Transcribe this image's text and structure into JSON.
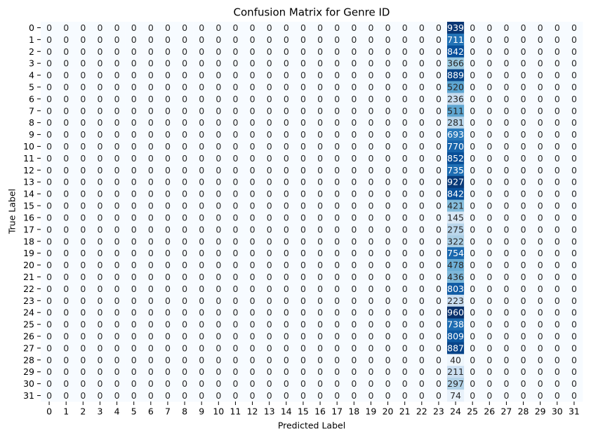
{
  "chart_data": {
    "type": "heatmap",
    "title": "Confusion Matrix for Genre ID",
    "xlabel": "Predicted Label",
    "ylabel": "True Label",
    "x": [
      0,
      1,
      2,
      3,
      4,
      5,
      6,
      7,
      8,
      9,
      10,
      11,
      12,
      13,
      14,
      15,
      16,
      17,
      18,
      19,
      20,
      21,
      22,
      23,
      24,
      25,
      26,
      27,
      28,
      29,
      30,
      31
    ],
    "y": [
      0,
      1,
      2,
      3,
      4,
      5,
      6,
      7,
      8,
      9,
      10,
      11,
      12,
      13,
      14,
      15,
      16,
      17,
      18,
      19,
      20,
      21,
      22,
      23,
      24,
      25,
      26,
      27,
      28,
      29,
      30,
      31
    ],
    "colormap": [
      "#f7fbff",
      "#deebf7",
      "#c6dbef",
      "#9ecae1",
      "#6baed6",
      "#4292c6",
      "#2171b5",
      "#08519c",
      "#08306b"
    ],
    "values": [
      [
        0,
        0,
        0,
        0,
        0,
        0,
        0,
        0,
        0,
        0,
        0,
        0,
        0,
        0,
        0,
        0,
        0,
        0,
        0,
        0,
        0,
        0,
        0,
        0,
        939,
        0,
        0,
        0,
        0,
        0,
        0,
        0
      ],
      [
        0,
        0,
        0,
        0,
        0,
        0,
        0,
        0,
        0,
        0,
        0,
        0,
        0,
        0,
        0,
        0,
        0,
        0,
        0,
        0,
        0,
        0,
        0,
        0,
        711,
        0,
        0,
        0,
        0,
        0,
        0,
        0
      ],
      [
        0,
        0,
        0,
        0,
        0,
        0,
        0,
        0,
        0,
        0,
        0,
        0,
        0,
        0,
        0,
        0,
        0,
        0,
        0,
        0,
        0,
        0,
        0,
        0,
        842,
        0,
        0,
        0,
        0,
        0,
        0,
        0
      ],
      [
        0,
        0,
        0,
        0,
        0,
        0,
        0,
        0,
        0,
        0,
        0,
        0,
        0,
        0,
        0,
        0,
        0,
        0,
        0,
        0,
        0,
        0,
        0,
        0,
        366,
        0,
        0,
        0,
        0,
        0,
        0,
        0
      ],
      [
        0,
        0,
        0,
        0,
        0,
        0,
        0,
        0,
        0,
        0,
        0,
        0,
        0,
        0,
        0,
        0,
        0,
        0,
        0,
        0,
        0,
        0,
        0,
        0,
        889,
        0,
        0,
        0,
        0,
        0,
        0,
        0
      ],
      [
        0,
        0,
        0,
        0,
        0,
        0,
        0,
        0,
        0,
        0,
        0,
        0,
        0,
        0,
        0,
        0,
        0,
        0,
        0,
        0,
        0,
        0,
        0,
        0,
        520,
        0,
        0,
        0,
        0,
        0,
        0,
        0
      ],
      [
        0,
        0,
        0,
        0,
        0,
        0,
        0,
        0,
        0,
        0,
        0,
        0,
        0,
        0,
        0,
        0,
        0,
        0,
        0,
        0,
        0,
        0,
        0,
        0,
        236,
        0,
        0,
        0,
        0,
        0,
        0,
        0
      ],
      [
        0,
        0,
        0,
        0,
        0,
        0,
        0,
        0,
        0,
        0,
        0,
        0,
        0,
        0,
        0,
        0,
        0,
        0,
        0,
        0,
        0,
        0,
        0,
        0,
        511,
        0,
        0,
        0,
        0,
        0,
        0,
        0
      ],
      [
        0,
        0,
        0,
        0,
        0,
        0,
        0,
        0,
        0,
        0,
        0,
        0,
        0,
        0,
        0,
        0,
        0,
        0,
        0,
        0,
        0,
        0,
        0,
        0,
        281,
        0,
        0,
        0,
        0,
        0,
        0,
        0
      ],
      [
        0,
        0,
        0,
        0,
        0,
        0,
        0,
        0,
        0,
        0,
        0,
        0,
        0,
        0,
        0,
        0,
        0,
        0,
        0,
        0,
        0,
        0,
        0,
        0,
        693,
        0,
        0,
        0,
        0,
        0,
        0,
        0
      ],
      [
        0,
        0,
        0,
        0,
        0,
        0,
        0,
        0,
        0,
        0,
        0,
        0,
        0,
        0,
        0,
        0,
        0,
        0,
        0,
        0,
        0,
        0,
        0,
        0,
        770,
        0,
        0,
        0,
        0,
        0,
        0,
        0
      ],
      [
        0,
        0,
        0,
        0,
        0,
        0,
        0,
        0,
        0,
        0,
        0,
        0,
        0,
        0,
        0,
        0,
        0,
        0,
        0,
        0,
        0,
        0,
        0,
        0,
        852,
        0,
        0,
        0,
        0,
        0,
        0,
        0
      ],
      [
        0,
        0,
        0,
        0,
        0,
        0,
        0,
        0,
        0,
        0,
        0,
        0,
        0,
        0,
        0,
        0,
        0,
        0,
        0,
        0,
        0,
        0,
        0,
        0,
        735,
        0,
        0,
        0,
        0,
        0,
        0,
        0
      ],
      [
        0,
        0,
        0,
        0,
        0,
        0,
        0,
        0,
        0,
        0,
        0,
        0,
        0,
        0,
        0,
        0,
        0,
        0,
        0,
        0,
        0,
        0,
        0,
        0,
        927,
        0,
        0,
        0,
        0,
        0,
        0,
        0
      ],
      [
        0,
        0,
        0,
        0,
        0,
        0,
        0,
        0,
        0,
        0,
        0,
        0,
        0,
        0,
        0,
        0,
        0,
        0,
        0,
        0,
        0,
        0,
        0,
        0,
        842,
        0,
        0,
        0,
        0,
        0,
        0,
        0
      ],
      [
        0,
        0,
        0,
        0,
        0,
        0,
        0,
        0,
        0,
        0,
        0,
        0,
        0,
        0,
        0,
        0,
        0,
        0,
        0,
        0,
        0,
        0,
        0,
        0,
        421,
        0,
        0,
        0,
        0,
        0,
        0,
        0
      ],
      [
        0,
        0,
        0,
        0,
        0,
        0,
        0,
        0,
        0,
        0,
        0,
        0,
        0,
        0,
        0,
        0,
        0,
        0,
        0,
        0,
        0,
        0,
        0,
        0,
        145,
        0,
        0,
        0,
        0,
        0,
        0,
        0
      ],
      [
        0,
        0,
        0,
        0,
        0,
        0,
        0,
        0,
        0,
        0,
        0,
        0,
        0,
        0,
        0,
        0,
        0,
        0,
        0,
        0,
        0,
        0,
        0,
        0,
        275,
        0,
        0,
        0,
        0,
        0,
        0,
        0
      ],
      [
        0,
        0,
        0,
        0,
        0,
        0,
        0,
        0,
        0,
        0,
        0,
        0,
        0,
        0,
        0,
        0,
        0,
        0,
        0,
        0,
        0,
        0,
        0,
        0,
        322,
        0,
        0,
        0,
        0,
        0,
        0,
        0
      ],
      [
        0,
        0,
        0,
        0,
        0,
        0,
        0,
        0,
        0,
        0,
        0,
        0,
        0,
        0,
        0,
        0,
        0,
        0,
        0,
        0,
        0,
        0,
        0,
        0,
        754,
        0,
        0,
        0,
        0,
        0,
        0,
        0
      ],
      [
        0,
        0,
        0,
        0,
        0,
        0,
        0,
        0,
        0,
        0,
        0,
        0,
        0,
        0,
        0,
        0,
        0,
        0,
        0,
        0,
        0,
        0,
        0,
        0,
        478,
        0,
        0,
        0,
        0,
        0,
        0,
        0
      ],
      [
        0,
        0,
        0,
        0,
        0,
        0,
        0,
        0,
        0,
        0,
        0,
        0,
        0,
        0,
        0,
        0,
        0,
        0,
        0,
        0,
        0,
        0,
        0,
        0,
        436,
        0,
        0,
        0,
        0,
        0,
        0,
        0
      ],
      [
        0,
        0,
        0,
        0,
        0,
        0,
        0,
        0,
        0,
        0,
        0,
        0,
        0,
        0,
        0,
        0,
        0,
        0,
        0,
        0,
        0,
        0,
        0,
        0,
        803,
        0,
        0,
        0,
        0,
        0,
        0,
        0
      ],
      [
        0,
        0,
        0,
        0,
        0,
        0,
        0,
        0,
        0,
        0,
        0,
        0,
        0,
        0,
        0,
        0,
        0,
        0,
        0,
        0,
        0,
        0,
        0,
        0,
        223,
        0,
        0,
        0,
        0,
        0,
        0,
        0
      ],
      [
        0,
        0,
        0,
        0,
        0,
        0,
        0,
        0,
        0,
        0,
        0,
        0,
        0,
        0,
        0,
        0,
        0,
        0,
        0,
        0,
        0,
        0,
        0,
        0,
        960,
        0,
        0,
        0,
        0,
        0,
        0,
        0
      ],
      [
        0,
        0,
        0,
        0,
        0,
        0,
        0,
        0,
        0,
        0,
        0,
        0,
        0,
        0,
        0,
        0,
        0,
        0,
        0,
        0,
        0,
        0,
        0,
        0,
        738,
        0,
        0,
        0,
        0,
        0,
        0,
        0
      ],
      [
        0,
        0,
        0,
        0,
        0,
        0,
        0,
        0,
        0,
        0,
        0,
        0,
        0,
        0,
        0,
        0,
        0,
        0,
        0,
        0,
        0,
        0,
        0,
        0,
        809,
        0,
        0,
        0,
        0,
        0,
        0,
        0
      ],
      [
        0,
        0,
        0,
        0,
        0,
        0,
        0,
        0,
        0,
        0,
        0,
        0,
        0,
        0,
        0,
        0,
        0,
        0,
        0,
        0,
        0,
        0,
        0,
        0,
        887,
        0,
        0,
        0,
        0,
        0,
        0,
        0
      ],
      [
        0,
        0,
        0,
        0,
        0,
        0,
        0,
        0,
        0,
        0,
        0,
        0,
        0,
        0,
        0,
        0,
        0,
        0,
        0,
        0,
        0,
        0,
        0,
        0,
        40,
        0,
        0,
        0,
        0,
        0,
        0,
        0
      ],
      [
        0,
        0,
        0,
        0,
        0,
        0,
        0,
        0,
        0,
        0,
        0,
        0,
        0,
        0,
        0,
        0,
        0,
        0,
        0,
        0,
        0,
        0,
        0,
        0,
        211,
        0,
        0,
        0,
        0,
        0,
        0,
        0
      ],
      [
        0,
        0,
        0,
        0,
        0,
        0,
        0,
        0,
        0,
        0,
        0,
        0,
        0,
        0,
        0,
        0,
        0,
        0,
        0,
        0,
        0,
        0,
        0,
        0,
        297,
        0,
        0,
        0,
        0,
        0,
        0,
        0
      ],
      [
        0,
        0,
        0,
        0,
        0,
        0,
        0,
        0,
        0,
        0,
        0,
        0,
        0,
        0,
        0,
        0,
        0,
        0,
        0,
        0,
        0,
        0,
        0,
        0,
        74,
        0,
        0,
        0,
        0,
        0,
        0,
        0
      ]
    ]
  }
}
